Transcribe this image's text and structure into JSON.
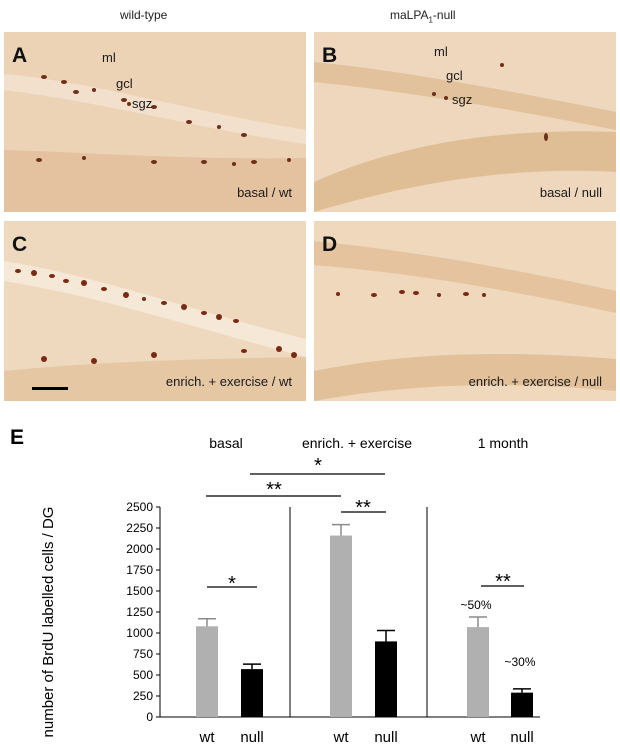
{
  "columns": {
    "left": "wild-type",
    "right_prefix": "maLPA",
    "right_sub": "1",
    "right_suffix": "-null"
  },
  "panels": [
    {
      "letter": "A",
      "caption": "basal / wt",
      "layers": [
        "ml",
        "gcl",
        "sgz"
      ]
    },
    {
      "letter": "B",
      "caption": "basal / null",
      "layers": [
        "ml",
        "gcl",
        "sgz"
      ]
    },
    {
      "letter": "C",
      "caption": "enrich. + exercise / wt",
      "layers": []
    },
    {
      "letter": "D",
      "caption": "enrich. + exercise / null",
      "layers": []
    }
  ],
  "chart_data": {
    "type": "bar",
    "panel_letter": "E",
    "ylabel": "number of BrdU labelled cells / DG",
    "ylim": [
      0,
      2500
    ],
    "yticks": [
      0,
      250,
      500,
      750,
      1000,
      1250,
      1500,
      1750,
      2000,
      2250,
      2500
    ],
    "groups": [
      {
        "name": "basal",
        "bars": [
          {
            "label": "wt",
            "value": 1080,
            "error": 90,
            "color": "#b0b0b0"
          },
          {
            "label": "null",
            "value": 570,
            "error": 60,
            "color": "#000000"
          }
        ]
      },
      {
        "name": "enrich. + exercise",
        "bars": [
          {
            "label": "wt",
            "value": 2160,
            "error": 130,
            "color": "#b0b0b0"
          },
          {
            "label": "null",
            "value": 900,
            "error": 130,
            "color": "#000000"
          }
        ]
      },
      {
        "name": "1 month",
        "bars": [
          {
            "label": "wt",
            "value": 1070,
            "error": 120,
            "color": "#b0b0b0"
          },
          {
            "label": "null",
            "value": 290,
            "error": 45,
            "color": "#000000"
          }
        ]
      }
    ],
    "bar_annotations": [
      "~50%",
      "~30%"
    ],
    "significance": [
      "*",
      "**",
      "*",
      "**",
      "**"
    ]
  }
}
